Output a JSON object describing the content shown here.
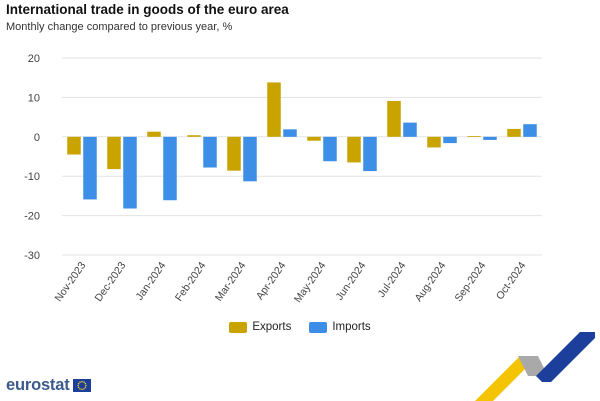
{
  "header": {
    "title": "International trade in goods of the euro area",
    "subtitle": "Monthly change compared to previous year, %"
  },
  "colors": {
    "exports": "#c9a400",
    "imports": "#3d8ee6",
    "grid": "#e3e3e3"
  },
  "chart_data": {
    "type": "bar",
    "categories": [
      "Nov-2023",
      "Dec-2023",
      "Jan-2024",
      "Feb-2024",
      "Mar-2024",
      "Apr-2024",
      "May-2024",
      "Jun-2024",
      "Jul-2024",
      "Aug-2024",
      "Sep-2024",
      "Oct-2024"
    ],
    "series": [
      {
        "name": "Exports",
        "values": [
          -4.5,
          -8.2,
          1.3,
          0.4,
          -8.6,
          13.8,
          -1.0,
          -6.5,
          9.1,
          -2.7,
          0.2,
          2.0
        ]
      },
      {
        "name": "Imports",
        "values": [
          -15.9,
          -18.2,
          -16.1,
          -7.8,
          -11.3,
          1.9,
          -6.2,
          -8.7,
          3.6,
          -1.6,
          -0.8,
          3.2
        ]
      }
    ],
    "yticks": [
      20,
      10,
      0,
      -10,
      -20,
      -30
    ],
    "ylim": [
      -30,
      20
    ],
    "grid": true,
    "legend": "bottom-center"
  },
  "legend": {
    "exports_label": "Exports",
    "imports_label": "Imports"
  },
  "brand": {
    "name": "eurostat",
    "logo_icon": "eu-flag-icon"
  }
}
